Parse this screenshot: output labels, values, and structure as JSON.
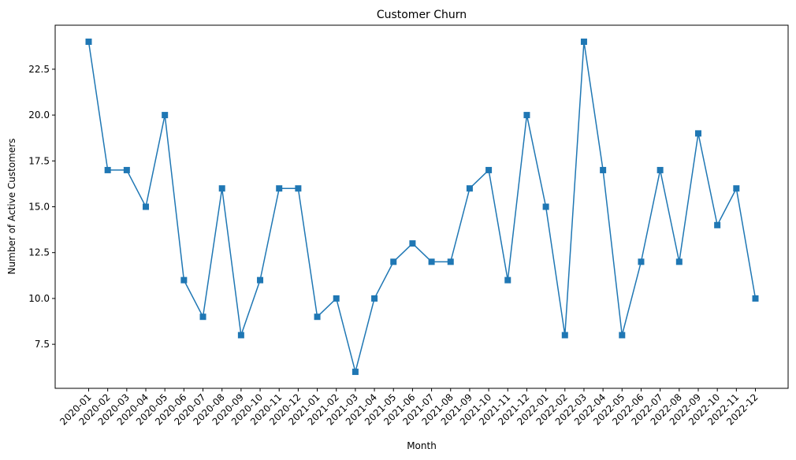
{
  "chart_data": {
    "type": "line",
    "title": "Customer Churn",
    "xlabel": "Month",
    "ylabel": "Number of Active Customers",
    "x": [
      "2020-01",
      "2020-02",
      "2020-03",
      "2020-04",
      "2020-05",
      "2020-06",
      "2020-07",
      "2020-08",
      "2020-09",
      "2020-10",
      "2020-11",
      "2020-12",
      "2021-01",
      "2021-02",
      "2021-03",
      "2021-04",
      "2021-05",
      "2021-06",
      "2021-07",
      "2021-08",
      "2021-09",
      "2021-10",
      "2021-11",
      "2021-12",
      "2022-01",
      "2022-02",
      "2022-03",
      "2022-04",
      "2022-05",
      "2022-06",
      "2022-07",
      "2022-08",
      "2022-09",
      "2022-10",
      "2022-11",
      "2022-12"
    ],
    "series": [
      {
        "values": [
          24,
          17,
          17,
          15,
          20,
          11,
          9,
          16,
          8,
          11,
          16,
          16,
          9,
          10,
          6,
          10,
          12,
          13,
          12,
          12,
          16,
          17,
          11,
          20,
          15,
          8,
          24,
          17,
          8,
          12,
          17,
          12,
          19,
          14,
          16,
          10
        ],
        "color": "#1f77b4",
        "marker": "square"
      }
    ],
    "ylim": [
      5.1,
      24.9
    ],
    "yticks": [
      7.5,
      10.0,
      12.5,
      15.0,
      17.5,
      20.0,
      22.5
    ],
    "ytick_labels": [
      "7.5",
      "10.0",
      "12.5",
      "15.0",
      "17.5",
      "20.0",
      "22.5"
    ],
    "grid": false,
    "legend": "none"
  }
}
